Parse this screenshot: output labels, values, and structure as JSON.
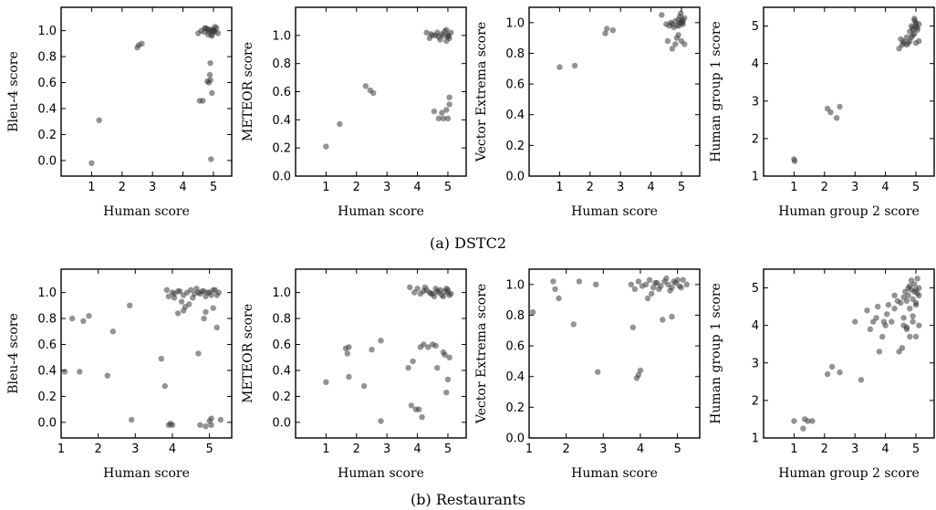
{
  "figure": {
    "captions": [
      "(a) DSTC2",
      "(b) Restaurants"
    ]
  },
  "chart_data": [
    {
      "type": "scatter",
      "row": 0,
      "col": 0,
      "xlabel": "Human score",
      "ylabel": "Bleu-4 score",
      "xlim": [
        0,
        5.6
      ],
      "ylim": [
        -0.12,
        1.18
      ],
      "xticks": [
        1,
        2,
        3,
        4,
        5
      ],
      "xtick_labels": [
        "1",
        "2",
        "3",
        "4",
        "5"
      ],
      "yticks": [
        0.0,
        0.2,
        0.4,
        0.6,
        0.8,
        1.0
      ],
      "ytick_labels": [
        "0.0",
        "0.2",
        "0.4",
        "0.6",
        "0.8",
        "1.0"
      ],
      "x": [
        1.0,
        1.25,
        2.5,
        2.55,
        2.65,
        4.55,
        4.65,
        4.8,
        4.85,
        4.9,
        4.9,
        4.95,
        4.92,
        4.88,
        4.5,
        4.6,
        4.7,
        4.8,
        4.9,
        5.0,
        5.05,
        5.1,
        5.15,
        4.75,
        4.85,
        4.95,
        5.0,
        5.05,
        4.98,
        4.86,
        4.94,
        5.02,
        4.82,
        4.72
      ],
      "y": [
        -0.02,
        0.31,
        0.87,
        0.89,
        0.9,
        0.46,
        0.46,
        0.61,
        0.6,
        0.62,
        0.75,
        0.52,
        0.01,
        0.66,
        0.98,
        1.0,
        0.99,
        1.01,
        1.0,
        1.0,
        0.99,
        1.02,
        0.98,
        1.02,
        1.01,
        0.97,
        1.0,
        1.03,
        1.01,
        0.99,
        0.96,
        1.0,
        0.97,
        1.02
      ]
    },
    {
      "type": "scatter",
      "row": 0,
      "col": 1,
      "xlabel": "Human score",
      "ylabel": "METEOR score",
      "xlim": [
        0,
        5.6
      ],
      "ylim": [
        0.0,
        1.2
      ],
      "xticks": [
        1,
        2,
        3,
        4,
        5
      ],
      "xtick_labels": [
        "1",
        "2",
        "3",
        "4",
        "5"
      ],
      "yticks": [
        0.0,
        0.2,
        0.4,
        0.6,
        0.8,
        1.0
      ],
      "ytick_labels": [
        "0.0",
        "0.2",
        "0.4",
        "0.6",
        "0.8",
        "1.0"
      ],
      "x": [
        1.0,
        1.45,
        2.3,
        2.45,
        2.55,
        4.55,
        4.7,
        4.8,
        4.85,
        4.95,
        5.0,
        5.05,
        5.05,
        4.3,
        4.4,
        4.5,
        4.6,
        4.7,
        4.8,
        4.9,
        5.0,
        5.05,
        5.1,
        4.65,
        4.75,
        4.85,
        4.95,
        5.0,
        4.45,
        4.95,
        5.02
      ],
      "y": [
        0.21,
        0.37,
        0.64,
        0.61,
        0.59,
        0.46,
        0.41,
        0.45,
        0.41,
        0.47,
        0.41,
        0.51,
        0.56,
        1.02,
        0.98,
        1.0,
        1.0,
        0.99,
        1.01,
        1.03,
        1.0,
        0.98,
        1.02,
        1.02,
        0.97,
        1.0,
        1.04,
        0.99,
        1.01,
        0.96,
        1.0
      ]
    },
    {
      "type": "scatter",
      "row": 0,
      "col": 2,
      "xlabel": "Human score",
      "ylabel": "Vector Extrema score",
      "xlim": [
        0,
        5.6
      ],
      "ylim": [
        0.0,
        1.1
      ],
      "xticks": [
        1,
        2,
        3,
        4,
        5
      ],
      "xtick_labels": [
        "1",
        "2",
        "3",
        "4",
        "5"
      ],
      "yticks": [
        0.0,
        0.2,
        0.4,
        0.6,
        0.8,
        1.0
      ],
      "ytick_labels": [
        "0.0",
        "0.2",
        "0.4",
        "0.6",
        "0.8",
        "1.0"
      ],
      "x": [
        1.0,
        1.5,
        2.5,
        2.55,
        2.75,
        4.35,
        4.5,
        4.6,
        4.65,
        4.7,
        4.8,
        4.9,
        4.95,
        5.0,
        5.05,
        5.1,
        4.75,
        4.85,
        4.95,
        5.05,
        5.0,
        4.55,
        4.7,
        4.8,
        4.85,
        4.9,
        5.0,
        5.1,
        4.98,
        4.92,
        5.02
      ],
      "y": [
        0.71,
        0.72,
        0.93,
        0.96,
        0.95,
        1.05,
        0.99,
        0.98,
        1.0,
        0.99,
        1.01,
        1.02,
        1.0,
        1.0,
        0.99,
        1.03,
        0.97,
        0.98,
        1.04,
        1.01,
        1.0,
        0.88,
        0.83,
        0.86,
        0.9,
        0.92,
        0.88,
        0.86,
        1.06,
        0.98,
        1.02
      ]
    },
    {
      "type": "scatter",
      "row": 0,
      "col": 3,
      "xlabel": "Human group 2 score",
      "ylabel": "Human group 1 score",
      "xlim": [
        0,
        5.6
      ],
      "ylim": [
        1,
        5.5
      ],
      "xticks": [
        1,
        2,
        3,
        4,
        5
      ],
      "xtick_labels": [
        "1",
        "2",
        "3",
        "4",
        "5"
      ],
      "yticks": [
        1,
        2,
        3,
        4,
        5
      ],
      "ytick_labels": [
        "1",
        "2",
        "3",
        "4",
        "5"
      ],
      "x": [
        1.0,
        1.02,
        2.1,
        2.2,
        2.4,
        2.5,
        4.45,
        4.55,
        4.6,
        4.7,
        4.75,
        4.8,
        4.85,
        4.9,
        4.95,
        5.0,
        5.05,
        5.1,
        5.0,
        4.9,
        4.8,
        4.7,
        4.6,
        4.5,
        4.95,
        5.0,
        5.05,
        4.9,
        4.85,
        5.1,
        5.0,
        4.95
      ],
      "y": [
        1.45,
        1.4,
        2.8,
        2.7,
        2.55,
        2.85,
        4.4,
        4.5,
        4.6,
        4.5,
        4.55,
        4.6,
        4.7,
        4.75,
        4.8,
        5.0,
        4.95,
        5.05,
        5.1,
        4.9,
        4.85,
        4.7,
        4.55,
        4.65,
        5.2,
        5.05,
        4.9,
        4.95,
        5.0,
        4.6,
        4.55,
        5.15
      ]
    },
    {
      "type": "scatter",
      "row": 1,
      "col": 0,
      "xlabel": "Human score",
      "ylabel": "Bleu-4 score",
      "xlim": [
        1,
        5.6
      ],
      "ylim": [
        -0.12,
        1.18
      ],
      "xticks": [
        1,
        2,
        3,
        4,
        5
      ],
      "xtick_labels": [
        "1",
        "2",
        "3",
        "4",
        "5"
      ],
      "yticks": [
        0.0,
        0.2,
        0.4,
        0.6,
        0.8,
        1.0
      ],
      "ytick_labels": [
        "0.0",
        "0.2",
        "0.4",
        "0.6",
        "0.8",
        "1.0"
      ],
      "x": [
        1.1,
        1.3,
        1.5,
        1.6,
        1.75,
        2.25,
        2.4,
        2.85,
        2.9,
        3.7,
        3.8,
        3.9,
        3.95,
        4.0,
        4.15,
        4.3,
        4.35,
        4.7,
        4.75,
        4.85,
        4.9,
        5.0,
        5.05,
        5.1,
        5.2,
        5.3,
        3.85,
        3.9,
        4.0,
        4.05,
        4.15,
        4.3,
        4.4,
        4.5,
        4.6,
        4.7,
        4.8,
        4.9,
        5.0,
        5.1,
        5.2,
        4.55,
        4.65,
        4.75,
        4.85,
        4.95,
        5.05,
        5.15,
        4.25,
        4.45,
        4.05,
        5.25,
        4.9,
        5.05,
        4.2
      ],
      "y": [
        0.39,
        0.8,
        0.39,
        0.78,
        0.82,
        0.36,
        0.7,
        0.9,
        0.02,
        0.49,
        0.28,
        -0.02,
        -0.01,
        -0.02,
        0.84,
        0.86,
        0.89,
        0.53,
        -0.02,
        0.8,
        0.85,
        0.01,
        -0.02,
        0.88,
        0.73,
        0.02,
        1.02,
        0.97,
        1.0,
        0.99,
        1.01,
        0.98,
        1.0,
        1.02,
        0.99,
        1.0,
        1.01,
        0.97,
        1.0,
        1.02,
        0.98,
        0.96,
        1.03,
        0.99,
        1.01,
        1.0,
        0.98,
        1.02,
        0.93,
        0.91,
        0.96,
        1.0,
        -0.03,
        0.03,
        1.01
      ]
    },
    {
      "type": "scatter",
      "row": 1,
      "col": 1,
      "xlabel": "Human score",
      "ylabel": "METEOR score",
      "xlim": [
        0,
        5.6
      ],
      "ylim": [
        -0.12,
        1.18
      ],
      "xticks": [
        1,
        2,
        3,
        4,
        5
      ],
      "xtick_labels": [
        "1",
        "2",
        "3",
        "4",
        "5"
      ],
      "yticks": [
        0.0,
        0.2,
        0.4,
        0.6,
        0.8,
        1.0
      ],
      "ytick_labels": [
        "0.0",
        "0.2",
        "0.4",
        "0.6",
        "0.8",
        "1.0"
      ],
      "x": [
        1.0,
        1.65,
        1.7,
        1.75,
        1.75,
        2.25,
        2.5,
        2.8,
        2.8,
        3.7,
        3.8,
        3.85,
        3.95,
        4.05,
        4.1,
        4.15,
        4.2,
        4.35,
        4.5,
        4.6,
        4.65,
        4.85,
        4.9,
        4.95,
        5.0,
        5.05,
        3.75,
        3.9,
        4.0,
        4.1,
        4.2,
        4.3,
        4.4,
        4.5,
        4.6,
        4.7,
        4.8,
        4.9,
        5.0,
        5.1,
        4.25,
        4.55,
        4.75,
        4.95,
        5.05,
        4.45,
        4.65,
        4.85,
        5.0
      ],
      "y": [
        0.31,
        0.57,
        0.53,
        0.35,
        0.58,
        0.28,
        0.56,
        0.63,
        0.01,
        0.42,
        0.13,
        0.47,
        0.1,
        0.1,
        0.58,
        0.04,
        0.6,
        0.58,
        0.6,
        0.59,
        0.42,
        0.54,
        0.52,
        0.23,
        0.33,
        0.5,
        1.04,
        1.0,
        1.03,
        0.99,
        1.01,
        1.02,
        1.0,
        0.99,
        1.03,
        1.0,
        0.98,
        1.01,
        1.0,
        0.99,
        1.04,
        0.97,
        1.02,
        1.03,
        0.98,
        0.99,
        1.01,
        0.97,
        1.02
      ]
    },
    {
      "type": "scatter",
      "row": 1,
      "col": 2,
      "xlabel": "Human score",
      "ylabel": "Vector Extrema score",
      "xlim": [
        1,
        5.6
      ],
      "ylim": [
        0.0,
        1.1
      ],
      "xticks": [
        1,
        2,
        3,
        4,
        5
      ],
      "xtick_labels": [
        "1",
        "2",
        "3",
        "4",
        "5"
      ],
      "yticks": [
        0.0,
        0.2,
        0.4,
        0.6,
        0.8,
        1.0
      ],
      "ytick_labels": [
        "0.0",
        "0.2",
        "0.4",
        "0.6",
        "0.8",
        "1.0"
      ],
      "x": [
        1.1,
        1.65,
        1.7,
        1.8,
        2.2,
        2.35,
        2.8,
        2.85,
        3.8,
        3.9,
        3.95,
        4.0,
        4.2,
        4.6,
        4.85,
        3.75,
        3.85,
        3.95,
        4.05,
        4.15,
        4.25,
        4.35,
        4.45,
        4.55,
        4.65,
        4.75,
        4.85,
        4.95,
        5.05,
        5.15,
        5.25,
        4.3,
        4.5,
        4.7,
        4.9,
        5.1,
        4.4,
        4.8,
        5.0
      ],
      "y": [
        0.82,
        1.02,
        0.97,
        0.91,
        0.74,
        1.02,
        1.0,
        0.43,
        0.72,
        0.39,
        0.41,
        0.44,
        0.91,
        0.77,
        0.79,
        1.0,
        0.97,
        1.02,
        0.99,
        1.0,
        1.03,
        0.98,
        1.01,
        0.99,
        1.02,
        1.0,
        0.98,
        1.01,
        0.99,
        1.03,
        1.0,
        0.94,
        0.97,
        1.04,
        1.02,
        0.98,
        1.01,
        0.96,
        1.03
      ]
    },
    {
      "type": "scatter",
      "row": 1,
      "col": 3,
      "xlabel": "Human group 2 score",
      "ylabel": "Human group 1 score",
      "xlim": [
        0,
        5.6
      ],
      "ylim": [
        1,
        5.5
      ],
      "xticks": [
        1,
        2,
        3,
        4,
        5
      ],
      "xtick_labels": [
        "1",
        "2",
        "3",
        "4",
        "5"
      ],
      "yticks": [
        1,
        2,
        3,
        4,
        5
      ],
      "ytick_labels": [
        "1",
        "2",
        "3",
        "4",
        "5"
      ],
      "x": [
        1.0,
        1.3,
        1.35,
        1.45,
        1.6,
        2.1,
        2.25,
        2.5,
        3.0,
        3.2,
        3.4,
        3.5,
        3.6,
        3.7,
        3.75,
        3.8,
        3.9,
        4.0,
        4.05,
        4.1,
        4.2,
        4.3,
        4.4,
        4.45,
        4.55,
        4.6,
        4.65,
        4.7,
        4.75,
        4.8,
        4.85,
        4.9,
        4.95,
        5.0,
        5.05,
        5.1,
        4.6,
        4.7,
        4.8,
        4.9,
        5.0,
        5.1,
        4.5,
        4.75,
        4.85,
        4.95,
        5.05,
        4.3,
        3.95,
        4.6,
        4.8,
        5.0,
        5.1,
        4.7,
        4.9,
        5.0
      ],
      "y": [
        1.45,
        1.25,
        1.5,
        1.45,
        1.45,
        2.7,
        2.9,
        2.75,
        4.1,
        2.55,
        4.4,
        3.9,
        4.1,
        4.2,
        4.5,
        3.3,
        3.7,
        4.0,
        4.3,
        4.55,
        4.1,
        4.45,
        4.65,
        3.3,
        3.4,
        4.0,
        4.9,
        4.65,
        4.8,
        4.45,
        4.95,
        4.7,
        5.1,
        4.55,
        4.85,
        5.0,
        4.2,
        3.9,
        3.7,
        4.1,
        3.7,
        4.0,
        4.6,
        5.0,
        5.2,
        4.9,
        5.25,
        4.8,
        4.1,
        4.75,
        5.05,
        4.95,
        4.8,
        3.95,
        4.25,
        4.6
      ]
    }
  ]
}
